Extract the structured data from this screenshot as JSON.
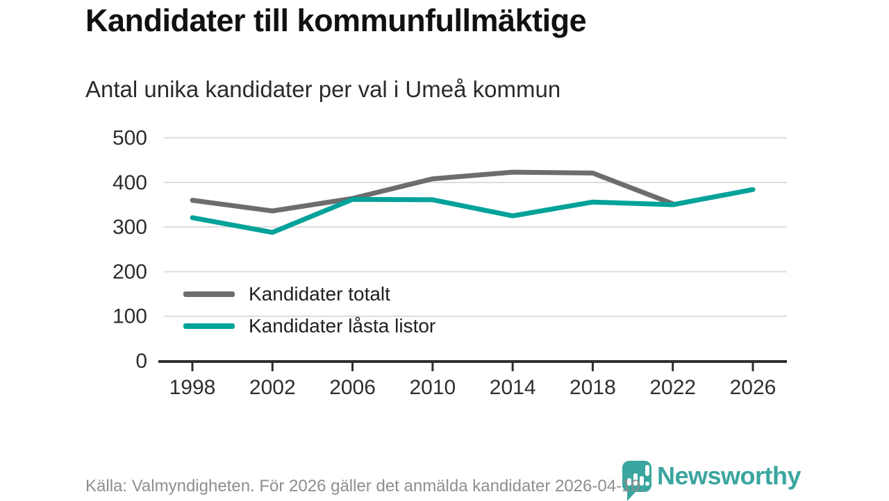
{
  "header": {
    "title": "Kandidater till kommunfullmäktige",
    "subtitle": "Antal unika kandidater per val i Umeå kommun"
  },
  "chart_data": {
    "type": "line",
    "x": [
      1998,
      2002,
      2006,
      2010,
      2014,
      2018,
      2022,
      2026
    ],
    "series": [
      {
        "name": "Kandidater totalt",
        "color": "#6d6d6d",
        "values": [
          360,
          336,
          364,
          408,
          423,
          421,
          352,
          null
        ]
      },
      {
        "name": "Kandidater låsta listor",
        "color": "#00a29a",
        "values": [
          321,
          288,
          362,
          361,
          325,
          356,
          350,
          384
        ]
      }
    ],
    "title": "Kandidater till kommunfullmäktige",
    "subtitle": "Antal unika kandidater per val i Umeå kommun",
    "xlabel": "",
    "ylabel": "",
    "ylim": [
      0,
      500
    ],
    "yticks": [
      0,
      100,
      200,
      300,
      400,
      500
    ],
    "grid": true,
    "legend_position": "inside-bottom-left"
  },
  "footer": {
    "source": "Källa: Valmyndigheten. För 2026 gäller det anmälda kandidater 2026-04-10.",
    "brand": "Newsworthy"
  },
  "colors": {
    "line_gray": "#6d6d6d",
    "accent_teal": "#00a29a",
    "brand_teal": "#3ba59f",
    "gridline": "#dcdcdc",
    "axis": "#2f2f2f",
    "tick_label": "#2e2e2e"
  }
}
